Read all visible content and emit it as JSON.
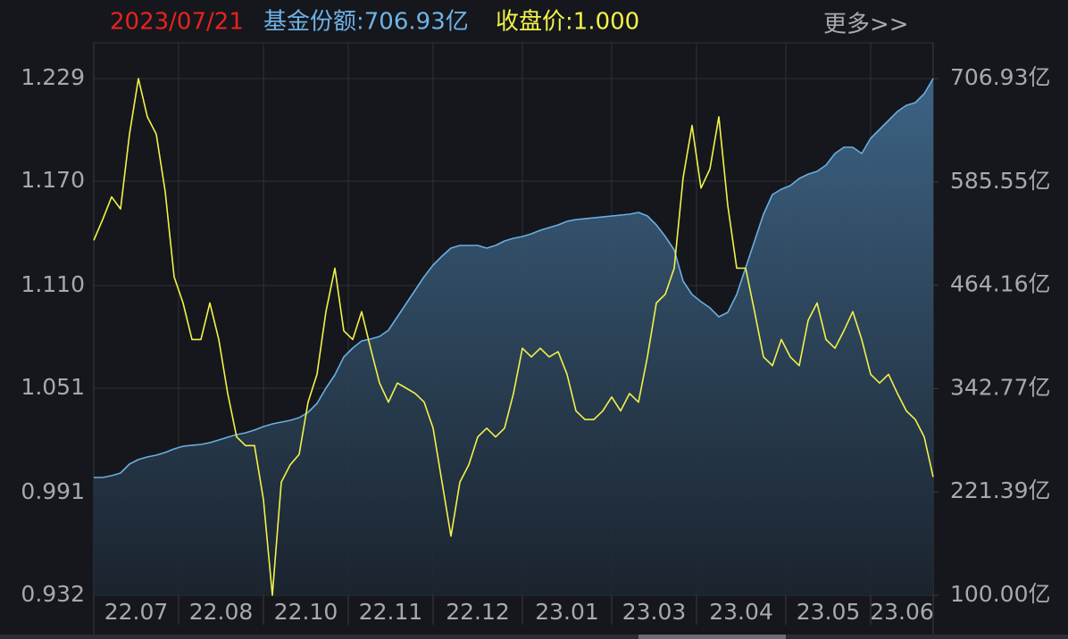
{
  "chart_data": {
    "type": "line",
    "header": {
      "date": "2023/07/21",
      "share": "基金份额:706.93亿",
      "close": "收盘价:1.000",
      "more": "更多>>"
    },
    "x": [
      0,
      1,
      2,
      3,
      4,
      5,
      6,
      7,
      8,
      9,
      10,
      11,
      12,
      13,
      14,
      15,
      16,
      17,
      18,
      19,
      20,
      21,
      22,
      23,
      24,
      25,
      26,
      27,
      28,
      29,
      30,
      31,
      32,
      33,
      34,
      35,
      36,
      37,
      38,
      39,
      40,
      41,
      42,
      43,
      44,
      45,
      46,
      47,
      48,
      49,
      50,
      51,
      52,
      53,
      54,
      55,
      56,
      57,
      58,
      59,
      60,
      61,
      62,
      63,
      64,
      65,
      66,
      67,
      68,
      69,
      70,
      71,
      72,
      73,
      74,
      75,
      76,
      77,
      78,
      79,
      80,
      81,
      82,
      83,
      84,
      85,
      86,
      87,
      88,
      89,
      90,
      91,
      92,
      93,
      94
    ],
    "xlim": [
      0,
      94
    ],
    "xticks": [
      {
        "value": 0,
        "label": "22.07"
      },
      {
        "value": 9.5,
        "label": "22.08"
      },
      {
        "value": 19,
        "label": "22.10"
      },
      {
        "value": 28.5,
        "label": "22.11"
      },
      {
        "value": 38,
        "label": "22.12"
      },
      {
        "value": 48,
        "label": "23.01"
      },
      {
        "value": 58,
        "label": "23.03"
      },
      {
        "value": 67.5,
        "label": "23.04"
      },
      {
        "value": 77.5,
        "label": "23.05"
      },
      {
        "value": 87,
        "label": "23.06"
      }
    ],
    "ylim": [
      0.932,
      1.229
    ],
    "yticks": [
      1.229,
      {
        "value": 1.17,
        "label": "1.170"
      },
      {
        "value": 1.11,
        "label": "1.110"
      },
      1.051,
      0.991,
      0.932
    ],
    "y2lim": [
      100,
      706.93
    ],
    "y2ticks": [
      {
        "value": 706.93,
        "label": "706.93亿"
      },
      {
        "value": 585.55,
        "label": "585.55亿"
      },
      {
        "value": 464.16,
        "label": "464.16亿"
      },
      {
        "value": 342.77,
        "label": "342.77亿"
      },
      {
        "value": 221.39,
        "label": "221.39亿"
      },
      {
        "value": 100,
        "label": "100.00亿"
      }
    ],
    "grid": true,
    "series": [
      {
        "color": "#6aaee0",
        "axis": "y2",
        "area": true,
        "values": [
          238.4,
          238.4,
          240.5,
          243.6,
          254.1,
          259.4,
          262.5,
          264.6,
          267.7,
          271.9,
          275.1,
          276.2,
          277.2,
          279.3,
          282.4,
          285.6,
          288.7,
          290.8,
          294.0,
          298.1,
          301.3,
          303.4,
          305.5,
          308.6,
          314.9,
          325.4,
          343.2,
          358.9,
          379.9,
          390.4,
          398.8,
          400.9,
          404.0,
          411.3,
          427.1,
          442.8,
          458.5,
          474.2,
          487.9,
          498.3,
          507.8,
          510.9,
          510.9,
          510.9,
          507.8,
          510.9,
          516.2,
          519.3,
          521.4,
          524.5,
          528.7,
          531.9,
          535.0,
          539.2,
          541.3,
          542.3,
          543.4,
          544.4,
          545.5,
          546.5,
          547.6,
          549.7,
          545.5,
          535.0,
          521.4,
          505.7,
          469.0,
          453.3,
          444.9,
          437.6,
          427.1,
          432.3,
          453.3,
          484.7,
          516.2,
          547.6,
          570.7,
          576.9,
          581.1,
          589.5,
          594.7,
          597.9,
          605.2,
          618.9,
          626.2,
          626.2,
          618.9,
          636.7,
          647.2,
          657.7,
          668.2,
          675.5,
          678.6,
          689.1,
          706.93
        ]
      },
      {
        "color": "#f2f24a",
        "axis": "y",
        "values": [
          1.136,
          1.148,
          1.161,
          1.154,
          1.197,
          1.229,
          1.207,
          1.197,
          1.164,
          1.115,
          1.1,
          1.079,
          1.079,
          1.1,
          1.079,
          1.048,
          1.023,
          1.018,
          1.018,
          0.987,
          0.932,
          0.997,
          1.007,
          1.013,
          1.043,
          1.059,
          1.095,
          1.12,
          1.084,
          1.079,
          1.095,
          1.074,
          1.054,
          1.043,
          1.054,
          1.051,
          1.048,
          1.043,
          1.028,
          0.997,
          0.966,
          0.997,
          1.007,
          1.023,
          1.028,
          1.023,
          1.028,
          1.048,
          1.074,
          1.069,
          1.074,
          1.069,
          1.072,
          1.059,
          1.038,
          1.033,
          1.033,
          1.038,
          1.046,
          1.038,
          1.048,
          1.043,
          1.069,
          1.1,
          1.105,
          1.12,
          1.172,
          1.202,
          1.166,
          1.177,
          1.207,
          1.156,
          1.12,
          1.12,
          1.095,
          1.069,
          1.064,
          1.079,
          1.069,
          1.064,
          1.09,
          1.1,
          1.079,
          1.074,
          1.084,
          1.095,
          1.079,
          1.059,
          1.054,
          1.059,
          1.048,
          1.038,
          1.033,
          1.023,
          1.0
        ]
      }
    ]
  }
}
